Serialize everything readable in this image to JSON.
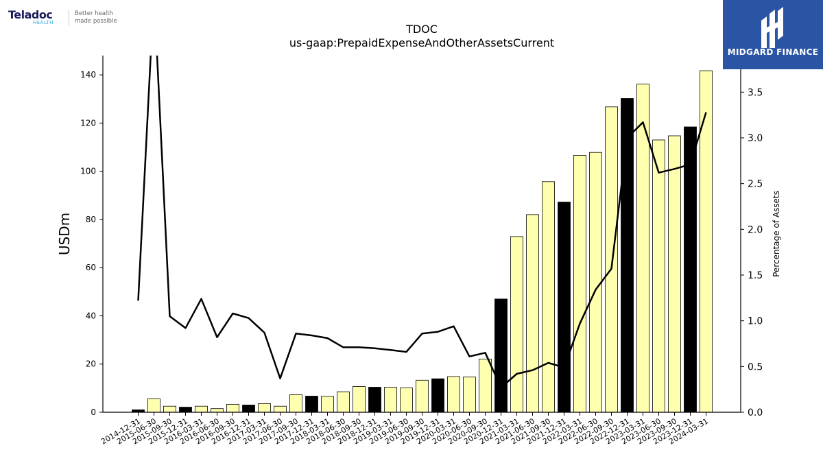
{
  "header_logo": {
    "brand": "Teladoc",
    "brand_sub": "HEALTH",
    "tagline": "Better health\nmade possible"
  },
  "watermark": {
    "name": "MIDGARD FINANCE",
    "bg_color": "#2a55a5"
  },
  "chart_data": {
    "type": "bar",
    "title": "TDOC",
    "subtitle": "us-gaap:PrepaidExpenseAndOtherAssetsCurrent",
    "ylabel": "USDm",
    "y2label": "Percentage of Assets",
    "ylim": [
      0,
      148
    ],
    "y2lim": [
      0,
      3.9
    ],
    "yticks": [
      0,
      20,
      40,
      60,
      80,
      100,
      120,
      140
    ],
    "y2ticks": [
      0.0,
      0.5,
      1.0,
      1.5,
      2.0,
      2.5,
      3.0,
      3.5
    ],
    "y2ticklabels": [
      "0.0",
      "0.5",
      "1.0",
      "1.5",
      "2.0",
      "2.5",
      "3.0",
      "3.5"
    ],
    "grid": false,
    "categories": [
      "2014-12-31",
      "2015-06-30",
      "2015-09-30",
      "2015-12-31",
      "2016-03-31",
      "2016-06-30",
      "2016-09-30",
      "2016-12-31",
      "2017-03-31",
      "2017-06-30",
      "2017-09-30",
      "2017-12-31",
      "2018-03-31",
      "2018-06-30",
      "2018-09-30",
      "2018-12-31",
      "2019-03-31",
      "2019-06-30",
      "2019-09-30",
      "2019-12-31",
      "2020-03-31",
      "2020-06-30",
      "2020-09-30",
      "2020-12-31",
      "2021-03-31",
      "2021-06-30",
      "2021-09-30",
      "2021-12-31",
      "2022-03-31",
      "2022-06-30",
      "2022-09-30",
      "2022-12-31",
      "2023-03-31",
      "2023-06-30",
      "2023-09-30",
      "2023-12-31",
      "2024-03-31"
    ],
    "series": [
      {
        "kind": "bar",
        "values": [
          1.0,
          5.6,
          2.5,
          2.1,
          2.5,
          1.5,
          3.3,
          3.0,
          3.6,
          2.5,
          7.3,
          6.7,
          6.6,
          8.5,
          10.7,
          10.4,
          10.4,
          10.1,
          13.3,
          13.9,
          14.8,
          14.6,
          22.1,
          47.0,
          72.9,
          82.0,
          95.7,
          87.2,
          106.6,
          107.8,
          126.7,
          130.2,
          136.2,
          113.0,
          114.7,
          118.4,
          141.7
        ],
        "colors": [
          "#000000",
          "#ffffb0",
          "#ffffb0",
          "#000000",
          "#ffffb0",
          "#ffffb0",
          "#ffffb0",
          "#000000",
          "#ffffb0",
          "#ffffb0",
          "#ffffb0",
          "#000000",
          "#ffffb0",
          "#ffffb0",
          "#ffffb0",
          "#000000",
          "#ffffb0",
          "#ffffb0",
          "#ffffb0",
          "#000000",
          "#ffffb0",
          "#ffffb0",
          "#ffffb0",
          "#000000",
          "#ffffb0",
          "#ffffb0",
          "#ffffb0",
          "#000000",
          "#ffffb0",
          "#ffffb0",
          "#ffffb0",
          "#000000",
          "#ffffb0",
          "#ffffb0",
          "#ffffb0",
          "#000000",
          "#ffffb0"
        ]
      },
      {
        "kind": "line",
        "axis": "right",
        "color": "#000000",
        "values": [
          1.22,
          4.6,
          1.05,
          0.92,
          1.24,
          0.82,
          1.08,
          1.03,
          0.87,
          0.37,
          0.86,
          0.84,
          0.81,
          0.71,
          0.71,
          0.7,
          0.68,
          0.66,
          0.86,
          0.88,
          0.94,
          0.61,
          0.65,
          0.27,
          0.42,
          0.46,
          0.54,
          0.49,
          0.97,
          1.34,
          1.57,
          3.0,
          3.17,
          2.62,
          2.66,
          2.71,
          3.28
        ]
      }
    ]
  }
}
